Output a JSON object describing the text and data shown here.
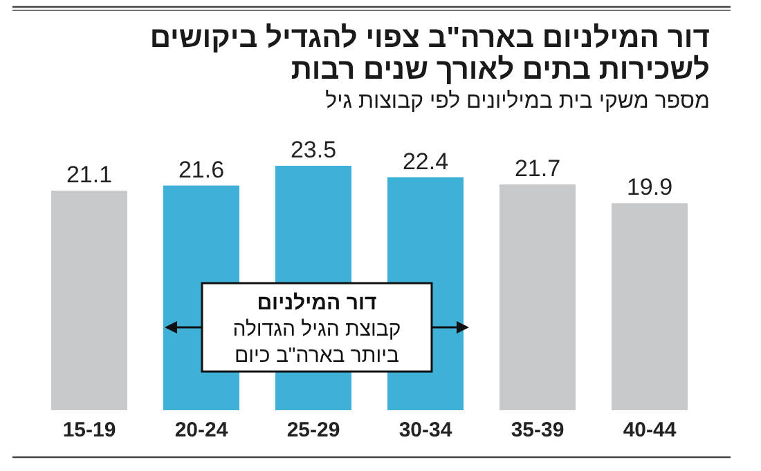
{
  "chart_data": {
    "type": "bar",
    "title": "דור המילניום בארה\"ב צפוי להגדיל ביקושים לשכירות בתים לאורך שנים רבות",
    "subtitle": "מספר משקי בית במיליונים לפי קבוצות גיל",
    "categories": [
      "15-19",
      "20-24",
      "25-29",
      "30-34",
      "35-39",
      "40-44"
    ],
    "values": [
      21.1,
      21.6,
      23.5,
      22.4,
      21.7,
      19.9
    ],
    "colors": [
      "#c8c9cb",
      "#3fb1d6",
      "#3fb1d6",
      "#3fb1d6",
      "#c8c9cb",
      "#c8c9cb"
    ],
    "data_labels": true,
    "annotations": [
      "דור המילניום",
      "קבוצת הגיל הגדולה",
      "ביותר בארה\"ב כיום"
    ]
  }
}
